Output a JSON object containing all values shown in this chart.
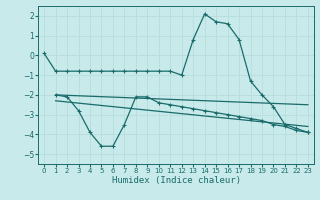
{
  "xlabel": "Humidex (Indice chaleur)",
  "background_color": "#c8eaea",
  "line_color": "#1a6b6b",
  "grid_color": "#b8dede",
  "xlim": [
    -0.5,
    23.5
  ],
  "ylim": [
    -5.5,
    2.5
  ],
  "yticks": [
    -5,
    -4,
    -3,
    -2,
    -1,
    0,
    1,
    2
  ],
  "xticks": [
    0,
    1,
    2,
    3,
    4,
    5,
    6,
    7,
    8,
    9,
    10,
    11,
    12,
    13,
    14,
    15,
    16,
    17,
    18,
    19,
    20,
    21,
    22,
    23
  ],
  "line1_x": [
    0,
    1,
    2,
    3,
    4,
    5,
    6,
    7,
    8,
    9,
    10,
    11,
    12,
    13,
    14,
    15,
    16,
    17,
    18,
    19,
    20,
    21,
    22,
    23
  ],
  "line1_y": [
    0.1,
    -0.8,
    -0.8,
    -0.8,
    -0.8,
    -0.8,
    -0.8,
    -0.8,
    -0.8,
    -0.8,
    -0.8,
    -0.8,
    -1.0,
    0.8,
    2.1,
    1.7,
    1.6,
    0.8,
    -1.3,
    -2.0,
    -2.6,
    -3.5,
    -3.7,
    -3.9
  ],
  "line2_x": [
    1,
    2,
    3,
    4,
    5,
    6,
    7,
    8,
    9,
    10,
    11,
    12,
    13,
    14,
    15,
    16,
    17,
    18,
    19,
    20,
    21,
    22,
    23
  ],
  "line2_y": [
    -2.0,
    -2.1,
    -2.8,
    -3.9,
    -4.6,
    -4.6,
    -3.5,
    -2.1,
    -2.1,
    -2.4,
    -2.5,
    -2.6,
    -2.7,
    -2.8,
    -2.9,
    -3.0,
    -3.1,
    -3.2,
    -3.3,
    -3.5,
    -3.6,
    -3.8,
    -3.9
  ],
  "line3_x": [
    1,
    23
  ],
  "line3_y": [
    -2.0,
    -2.5
  ],
  "line4_x": [
    1,
    23
  ],
  "line4_y": [
    -2.3,
    -3.6
  ]
}
